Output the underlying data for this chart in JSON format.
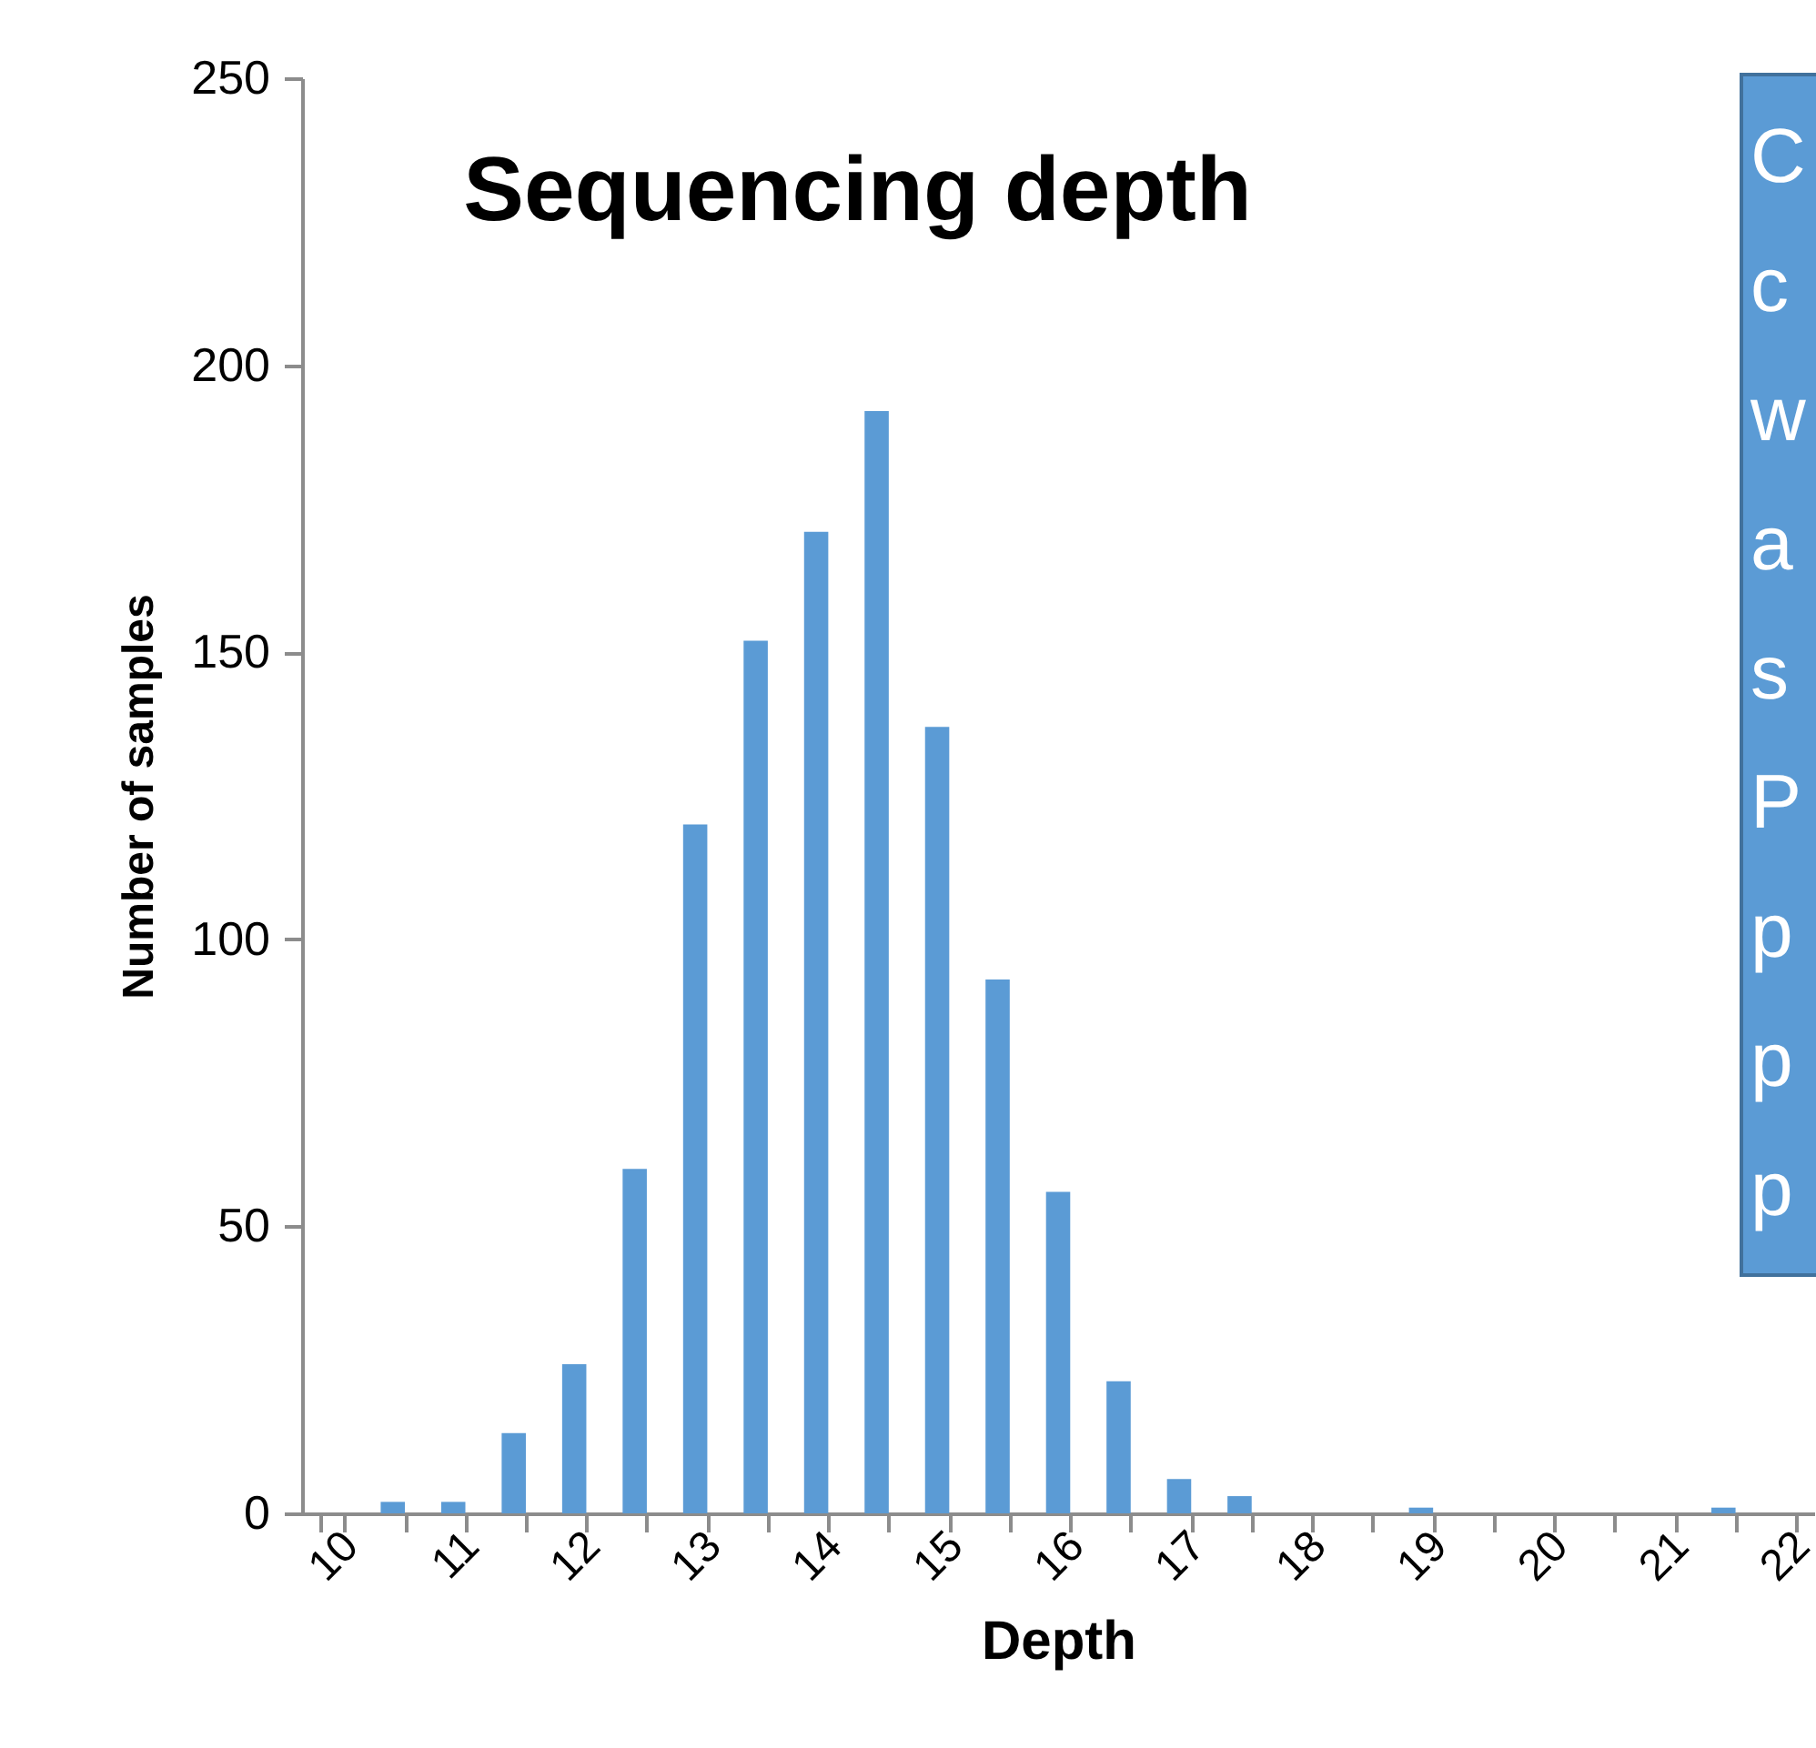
{
  "chart_data": {
    "type": "bar",
    "title": "Sequencing depth",
    "xlabel": "Depth",
    "ylabel": "Number of samples",
    "categories": [
      "10",
      null,
      "11",
      null,
      "12",
      null,
      "13",
      null,
      "14",
      null,
      "15",
      null,
      "16",
      null,
      "17",
      null,
      "18",
      null,
      "19",
      null,
      "20",
      null,
      "21",
      null,
      "22"
    ],
    "values": [
      0,
      2,
      2,
      14,
      26,
      60,
      120,
      152,
      171,
      192,
      137,
      93,
      56,
      23,
      6,
      3,
      0,
      0,
      1,
      0,
      0,
      0,
      0,
      1,
      0
    ],
    "color": "#5b9bd5",
    "ylim": [
      0,
      250
    ],
    "yticks": [
      0,
      50,
      100,
      150,
      200,
      250
    ],
    "grid": false,
    "annotations": [
      "C\nc\nw\na\ns\nP\np\np\np"
    ]
  }
}
